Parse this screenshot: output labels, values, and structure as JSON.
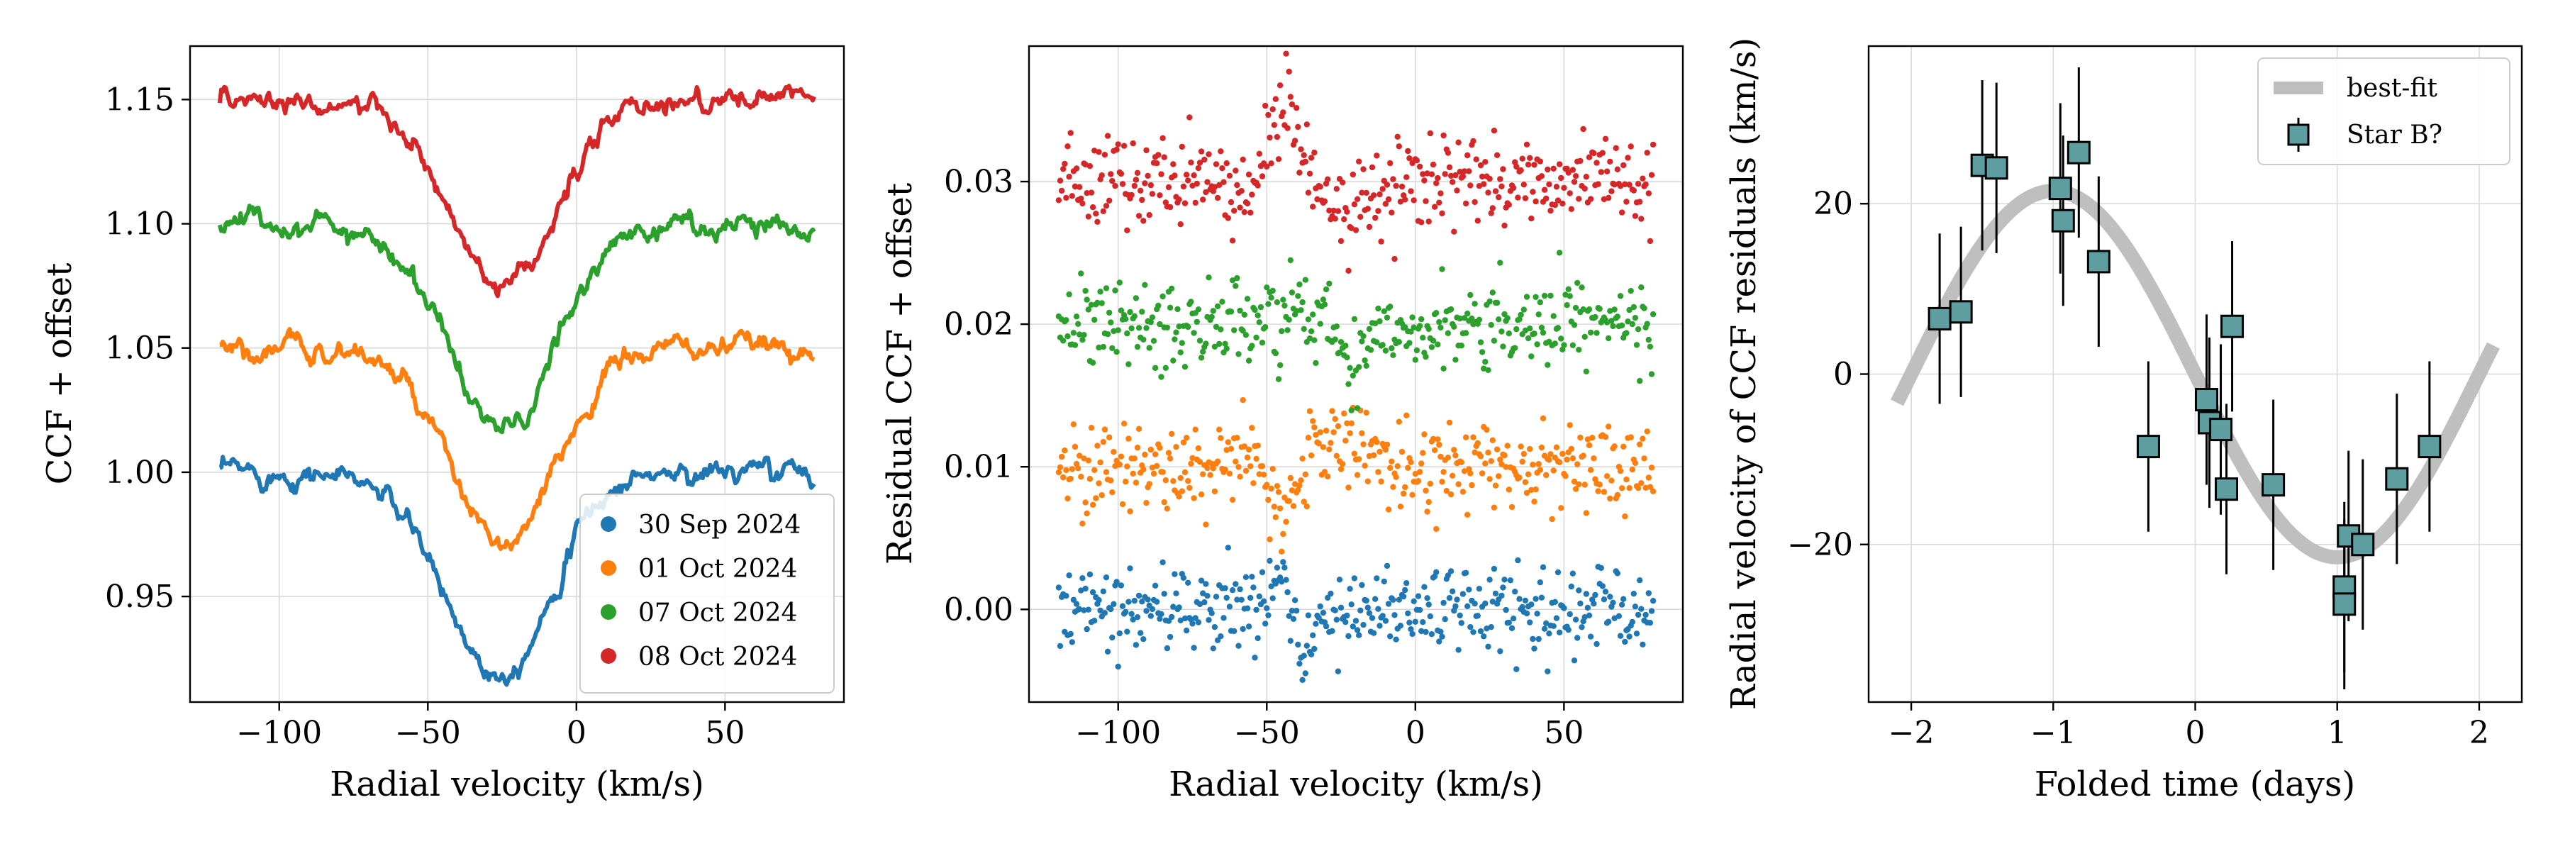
{
  "chart_data": [
    {
      "type": "line",
      "xlabel": "Radial velocity (km/s)",
      "ylabel": "CCF + offset",
      "xlim": [
        -130,
        90
      ],
      "ylim": [
        0.9075,
        1.1715
      ],
      "xticks": [
        -100,
        -50,
        0,
        50
      ],
      "yticks": [
        0.95,
        1.0,
        1.05,
        1.1,
        1.15
      ],
      "xtick_labels": [
        "−100",
        "−50",
        "0",
        "50"
      ],
      "ytick_labels": [
        "0.95",
        "1.00",
        "1.05",
        "1.10",
        "1.15"
      ],
      "grid": true,
      "legend_position": "lower-right",
      "velocity_range": [
        -120,
        80
      ],
      "series": [
        {
          "name": "30 Sep 2024",
          "color": "#1f77b4",
          "offset": 0.0,
          "center": -26,
          "depth": 0.08,
          "width": 18
        },
        {
          "name": "01 Oct 2024",
          "color": "#ff7f0e",
          "offset": 0.05,
          "center": -24,
          "depth": 0.08,
          "width": 18
        },
        {
          "name": "07 Oct 2024",
          "color": "#2ca02c",
          "offset": 0.1,
          "center": -24,
          "depth": 0.083,
          "width": 18
        },
        {
          "name": "08 Oct 2024",
          "color": "#d62728",
          "offset": 0.15,
          "center": -24,
          "depth": 0.077,
          "width": 18
        }
      ]
    },
    {
      "type": "scatter",
      "xlabel": "Radial velocity (km/s)",
      "ylabel": "Residual CCF + offset",
      "xlim": [
        -130,
        90
      ],
      "ylim": [
        -0.0065,
        0.0395
      ],
      "xticks": [
        -100,
        -50,
        0,
        50
      ],
      "yticks": [
        0.0,
        0.01,
        0.02,
        0.03
      ],
      "xtick_labels": [
        "−100",
        "−50",
        "0",
        "50"
      ],
      "ytick_labels": [
        "0.00",
        "0.01",
        "0.02",
        "0.03"
      ],
      "grid": true,
      "velocity_range": [
        -120,
        80
      ],
      "noise_sigma": 0.0015,
      "series": [
        {
          "color": "#1f77b4",
          "offset": 0.0,
          "feature": "emission near -45 then dip near -40"
        },
        {
          "color": "#ff7f0e",
          "offset": 0.01,
          "feature": "dip near -45, rise near -20"
        },
        {
          "color": "#2ca02c",
          "offset": 0.02,
          "feature": "dip near -20"
        },
        {
          "color": "#d62728",
          "offset": 0.03,
          "feature": "emission peak near -45"
        }
      ]
    },
    {
      "type": "scatter",
      "xlabel": "Folded time (days)",
      "ylabel": "Radial velocity of CCF residuals (km/s)",
      "xlim": [
        -2.3,
        2.3
      ],
      "ylim": [
        -38.5,
        38.5
      ],
      "xticks": [
        -2,
        -1,
        0,
        1,
        2
      ],
      "yticks": [
        -20,
        0,
        20
      ],
      "xtick_labels": [
        "−2",
        "−1",
        "0",
        "1",
        "2"
      ],
      "ytick_labels": [
        "−20",
        "0",
        "20"
      ],
      "grid": true,
      "legend_position": "upper-right",
      "fit": {
        "name": "best-fit",
        "color": "#bfbfbf",
        "amplitude": 21.5,
        "period": 4.0,
        "x_range": [
          -2.1,
          2.1
        ]
      },
      "points": {
        "name": "Star B?",
        "face_color": "#5f9ea0",
        "x": [
          -1.8,
          -1.65,
          -1.5,
          -1.4,
          -0.95,
          -0.93,
          -0.82,
          -0.68,
          -0.33,
          0.08,
          0.1,
          0.18,
          0.22,
          0.26,
          0.55,
          1.05,
          1.05,
          1.08,
          1.18,
          1.42,
          1.65
        ],
        "y": [
          6.5,
          7.3,
          24.5,
          24.2,
          21.8,
          18.0,
          26.0,
          13.2,
          -8.5,
          -3.0,
          -5.7,
          -6.5,
          -13.5,
          5.6,
          -13.0,
          -25.0,
          -27.0,
          -19.0,
          -20.0,
          -12.3,
          -8.5
        ],
        "yerr": [
          10,
          10,
          10,
          10,
          10,
          10,
          10,
          10,
          10,
          10,
          10,
          10,
          10,
          10,
          10,
          10,
          10,
          10,
          10,
          10,
          10
        ]
      }
    }
  ]
}
